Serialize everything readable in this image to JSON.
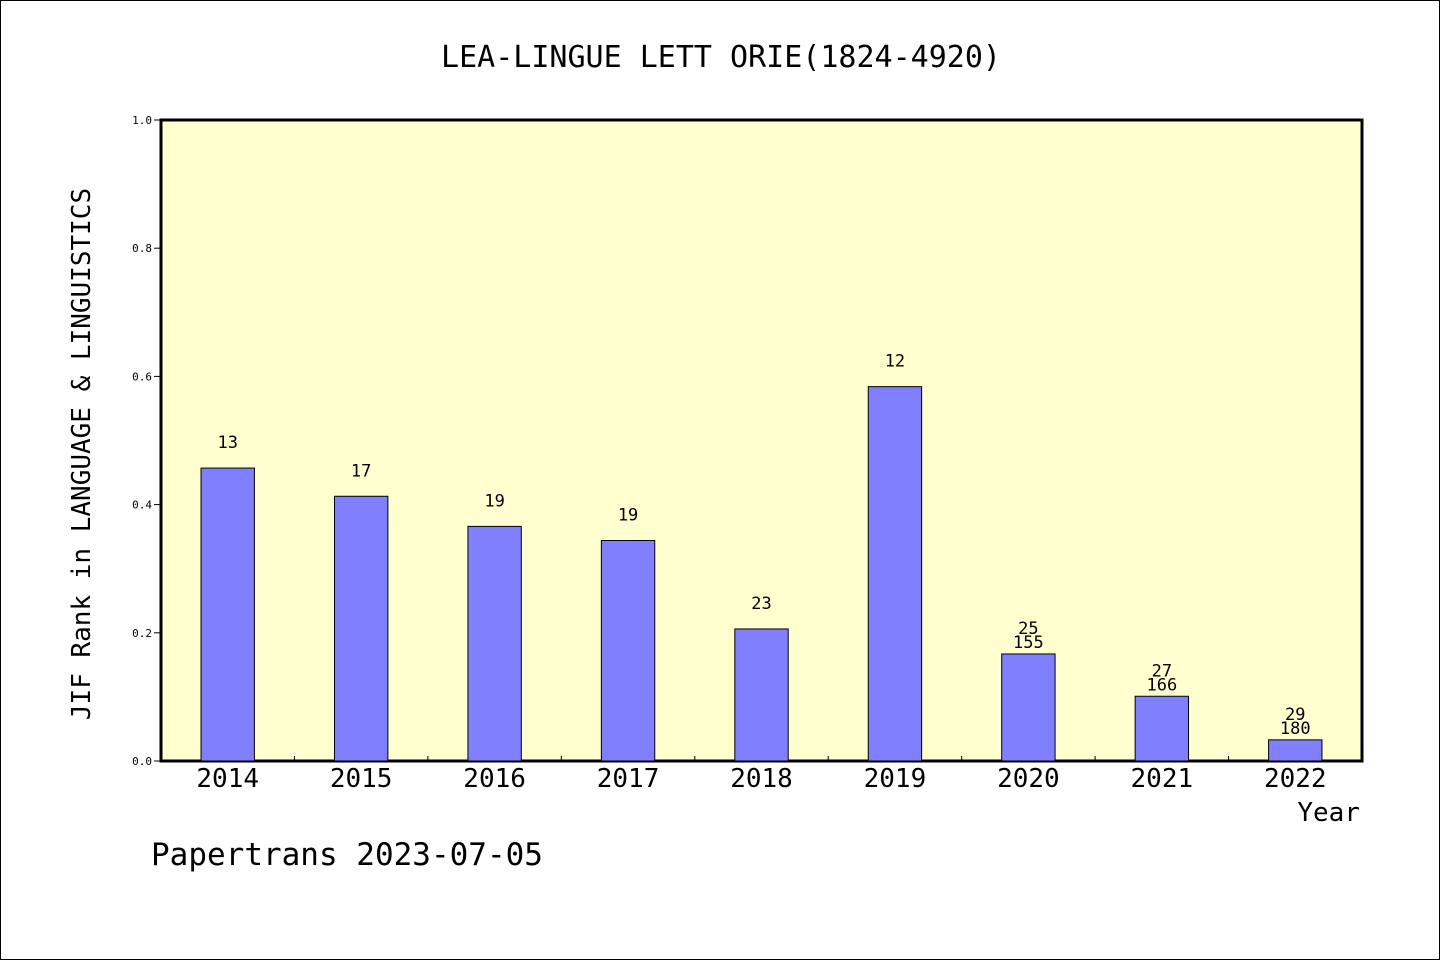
{
  "colors": {
    "plot_background": "#ffffd0",
    "bar_fill": "#8080ff",
    "bar_stroke": "#000000"
  },
  "watermark": "Papertrans 2023-07-05",
  "chart_data": {
    "type": "bar",
    "title": "LEA-LINGUE LETT ORIE(1824-4920)",
    "xlabel": "Year",
    "ylabel": "JIF Rank in LANGUAGE & LINGUISTICS",
    "categories": [
      "2014",
      "2015",
      "2016",
      "2017",
      "2018",
      "2019",
      "2020",
      "2021",
      "2022"
    ],
    "values": [
      0.457,
      0.413,
      0.366,
      0.344,
      0.206,
      0.584,
      0.167,
      0.101,
      0.033
    ],
    "rank_labels": [
      "13",
      "17",
      "19",
      "19",
      "23",
      "12",
      "25",
      "27",
      "29"
    ],
    "total_labels": [
      "",
      "",
      "",
      "",
      "",
      "",
      "155",
      "166",
      "180"
    ],
    "ylim": [
      0,
      1.0
    ],
    "yticks": [
      "0.0",
      "0.2",
      "0.4",
      "0.6",
      "0.8",
      "1.0"
    ],
    "grid": false,
    "legend": "none"
  }
}
